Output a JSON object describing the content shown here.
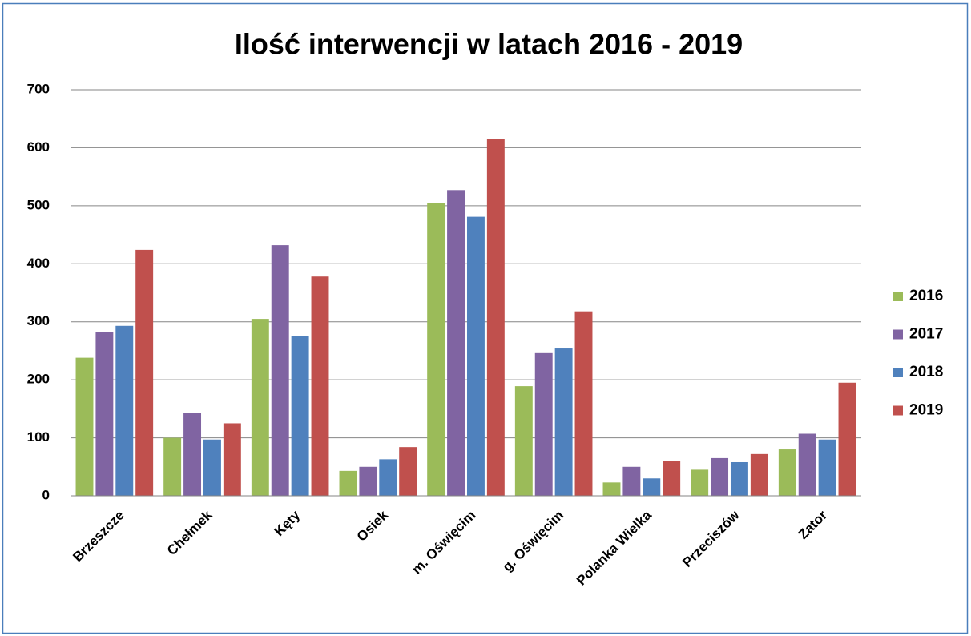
{
  "chart_data": {
    "type": "bar",
    "title": "Ilość interwencji w latach 2016 - 2019",
    "categories": [
      "Brzeszcze",
      "Chełmek",
      "Kęty",
      "Osiek",
      "m. Oświęcim",
      "g. Oświęcim",
      "Polanka Wielka",
      "Przeciszów",
      "Zator"
    ],
    "series": [
      {
        "name": "2016",
        "color": "#9bbb59",
        "values": [
          238,
          100,
          305,
          43,
          505,
          189,
          23,
          45,
          80
        ]
      },
      {
        "name": "2017",
        "color": "#8064a2",
        "values": [
          282,
          143,
          432,
          50,
          527,
          246,
          50,
          65,
          107
        ]
      },
      {
        "name": "2018",
        "color": "#4f81bd",
        "values": [
          293,
          97,
          275,
          63,
          481,
          254,
          30,
          58,
          97
        ]
      },
      {
        "name": "2019",
        "color": "#c0504d",
        "values": [
          424,
          125,
          378,
          84,
          615,
          318,
          60,
          72,
          195
        ]
      }
    ],
    "ylim": [
      0,
      700
    ],
    "yticks": [
      0,
      100,
      200,
      300,
      400,
      500,
      600,
      700
    ],
    "grid": true,
    "legend": "right"
  }
}
